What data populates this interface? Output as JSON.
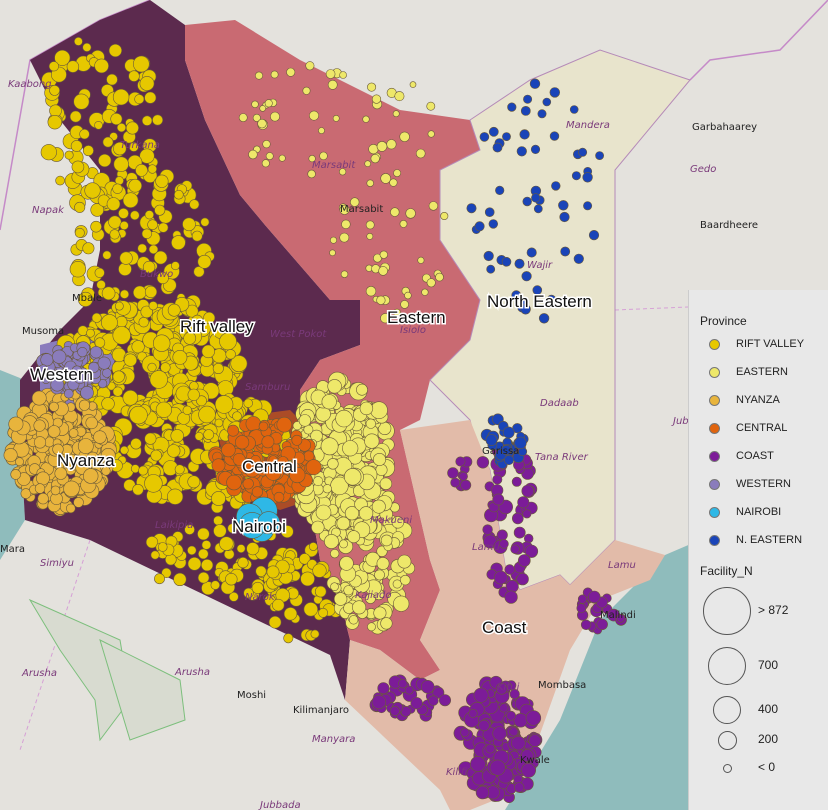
{
  "map": {
    "province_labels": [
      "Rift valley",
      "Western",
      "Nyanza",
      "Central",
      "Nairobi",
      "Eastern",
      "North Eastern",
      "Coast"
    ],
    "places": [
      "Kaabong",
      "Napak",
      "Turkana",
      "Marsabit",
      "Marsabit",
      "Mandera",
      "Garbahaarey",
      "Gedo",
      "Baardheere",
      "Wajir",
      "Isiolo",
      "Garissa",
      "Dadaab",
      "Tana River",
      "Lamu",
      "Lamu",
      "Malindi",
      "Mombasa",
      "Kwale",
      "Kilifi",
      "Kitui",
      "Makueni",
      "Kajiado",
      "Narok",
      "Laikipia",
      "Samburu",
      "West Pokot",
      "Bukwo",
      "Mbale",
      "Musoma",
      "Mara",
      "Simiyu",
      "Arusha",
      "Arusha",
      "Moshi",
      "Kilimanjaro",
      "Manyara",
      "Jubbada"
    ]
  },
  "legend": {
    "province_title": "Province",
    "provinces": [
      {
        "label": "RIFT VALLEY",
        "color": "#e6c800"
      },
      {
        "label": "EASTERN",
        "color": "#eee86a"
      },
      {
        "label": "NYANZA",
        "color": "#e8b43c"
      },
      {
        "label": "CENTRAL",
        "color": "#e0640e"
      },
      {
        "label": "COAST",
        "color": "#7c1c98"
      },
      {
        "label": "WESTERN",
        "color": "#8a7cbc"
      },
      {
        "label": "NAIROBI",
        "color": "#2eb8e6"
      },
      {
        "label": "N. EASTERN",
        "color": "#1a44b8"
      }
    ],
    "size_title": "Facility_N",
    "sizes": [
      {
        "label": "> 872"
      },
      {
        "label": "700"
      },
      {
        "label": "400"
      },
      {
        "label": "200"
      },
      {
        "label": "< 0"
      }
    ]
  },
  "region_colors": {
    "rift_valley": "#5c2a4e",
    "eastern": "#c96a72",
    "north_eastern": "#e8e4cc",
    "coast": "#e2bba9",
    "water": "#8fbcbc"
  }
}
